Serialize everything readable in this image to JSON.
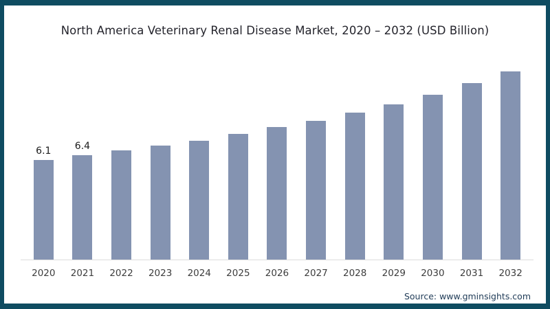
{
  "frame": {
    "border_color": "#0f4c61",
    "background_color": "#ffffff"
  },
  "chart_data": {
    "type": "bar",
    "title": "North America Veterinary Renal Disease Market, 2020 – 2032 (USD Billion)",
    "categories": [
      "2020",
      "2021",
      "2022",
      "2023",
      "2024",
      "2025",
      "2026",
      "2027",
      "2028",
      "2029",
      "2030",
      "2031",
      "2032"
    ],
    "values": [
      6.1,
      6.4,
      6.7,
      7.0,
      7.3,
      7.7,
      8.1,
      8.5,
      9.0,
      9.5,
      10.1,
      10.8,
      11.5
    ],
    "data_labels": [
      "6.1",
      "6.4",
      "",
      "",
      "",
      "",
      "",
      "",
      "",
      "",
      "",
      "",
      ""
    ],
    "xlabel": "",
    "ylabel": "",
    "ylim": [
      0,
      12
    ],
    "grid": false,
    "legend": null,
    "bar_color": "#8493b1",
    "axis_line_color": "#dcdcdc"
  },
  "footer": {
    "source_label": "Source: www.gminsights.com"
  }
}
